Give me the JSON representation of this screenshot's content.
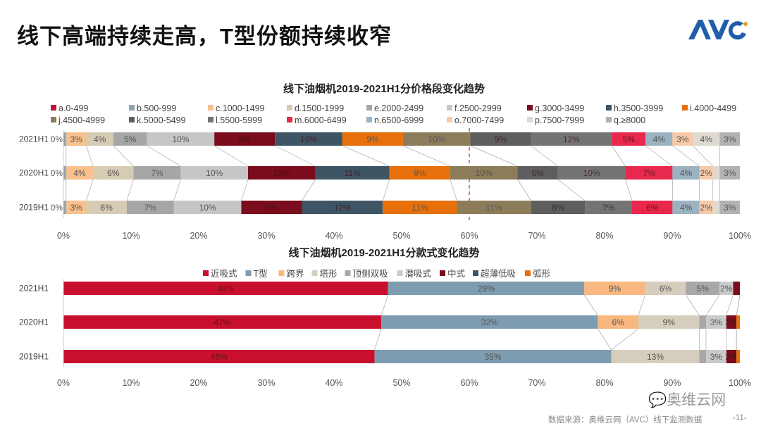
{
  "header": {
    "title": "线下高端持续走高，T型份额持续收窄",
    "logo_text": "AVC"
  },
  "footer": {
    "source": "数据来源：奥维云网（AVC）线下监测数据",
    "page": "-11-",
    "watermark": "奥维云网"
  },
  "chart_data": [
    {
      "type": "bar",
      "orientation": "horizontal",
      "stacked": "100%",
      "title": "线下油烟机2019-2021H1分价格段变化趋势",
      "categories": [
        "2021H1",
        "2020H1",
        "2019H1"
      ],
      "xlim": [
        0,
        100
      ],
      "xticks": [
        "0%",
        "10%",
        "20%",
        "30%",
        "40%",
        "50%",
        "60%",
        "70%",
        "80%",
        "90%",
        "100%"
      ],
      "reference_line": {
        "x": 60,
        "style": "dashed",
        "color": "#b03040"
      },
      "legend_position": "top",
      "series": [
        {
          "name": "a.0-499",
          "color": "#c0143c",
          "values": [
            0,
            0,
            0
          ]
        },
        {
          "name": "b.500-999",
          "color": "#8aa4b4",
          "values": [
            0.4,
            0.4,
            0.4
          ]
        },
        {
          "name": "c.1000-1499",
          "color": "#f8c08c",
          "values": [
            3,
            4,
            3
          ]
        },
        {
          "name": "d.1500-1999",
          "color": "#d6ccb4",
          "values": [
            4,
            6,
            6
          ]
        },
        {
          "name": "e.2000-2499",
          "color": "#a6a6a6",
          "values": [
            5,
            7,
            7
          ]
        },
        {
          "name": "f.2500-2999",
          "color": "#c6c6c6",
          "values": [
            10,
            10,
            10
          ]
        },
        {
          "name": "g.3000-3499",
          "color": "#7a0c1c",
          "values": [
            9,
            10,
            9
          ]
        },
        {
          "name": "h.3500-3999",
          "color": "#3e5566",
          "values": [
            10,
            11,
            12
          ]
        },
        {
          "name": "i.4000-4499",
          "color": "#e8700c",
          "values": [
            9,
            9,
            11
          ]
        },
        {
          "name": "j.4500-4999",
          "color": "#8c7c5a",
          "values": [
            10,
            10,
            11
          ]
        },
        {
          "name": "k.5000-5499",
          "color": "#5e5e5e",
          "values": [
            9,
            6,
            8
          ]
        },
        {
          "name": "l.5500-5999",
          "color": "#747474",
          "values": [
            12,
            10,
            7
          ]
        },
        {
          "name": "m.6000-6499",
          "color": "#e8284c",
          "values": [
            5,
            7,
            6
          ]
        },
        {
          "name": "n.6500-6999",
          "color": "#9ab2c2",
          "values": [
            4,
            4,
            4
          ]
        },
        {
          "name": "o.7000-7499",
          "color": "#f8caa8",
          "values": [
            3,
            2,
            2
          ]
        },
        {
          "name": "p.7500-7999",
          "color": "#dedad0",
          "values": [
            4,
            1,
            1
          ]
        },
        {
          "name": "q.≥8000",
          "color": "#b2b2b2",
          "values": [
            3,
            3,
            3
          ]
        }
      ]
    },
    {
      "type": "bar",
      "orientation": "horizontal",
      "stacked": "100%",
      "title": "线下油烟机2019-2021H1分款式变化趋势",
      "categories": [
        "2021H1",
        "2020H1",
        "2019H1"
      ],
      "xlim": [
        0,
        100
      ],
      "xticks": [
        "0%",
        "10%",
        "20%",
        "30%",
        "40%",
        "50%",
        "60%",
        "70%",
        "80%",
        "90%",
        "100%"
      ],
      "legend_position": "top",
      "series": [
        {
          "name": "近吸式",
          "color": "#c8102e",
          "values": [
            48,
            47,
            46
          ]
        },
        {
          "name": "T型",
          "color": "#7e9cb0",
          "values": [
            29,
            32,
            35
          ]
        },
        {
          "name": "跨界",
          "color": "#f8b880",
          "values": [
            9,
            6,
            0
          ]
        },
        {
          "name": "塔形",
          "color": "#d6cebc",
          "values": [
            6,
            9,
            13
          ]
        },
        {
          "name": "顶侧双吸",
          "color": "#a8a8a8",
          "values": [
            5,
            1,
            1
          ]
        },
        {
          "name": "潜吸式",
          "color": "#cacaca",
          "values": [
            2,
            3,
            3
          ]
        },
        {
          "name": "中式",
          "color": "#7a0c1c",
          "values": [
            1,
            1.5,
            1.5
          ]
        },
        {
          "name": "超薄低吸",
          "color": "#3e5566",
          "values": [
            0,
            0,
            0
          ]
        },
        {
          "name": "弧形",
          "color": "#e8700c",
          "values": [
            0,
            0.5,
            0.5
          ]
        }
      ]
    }
  ]
}
